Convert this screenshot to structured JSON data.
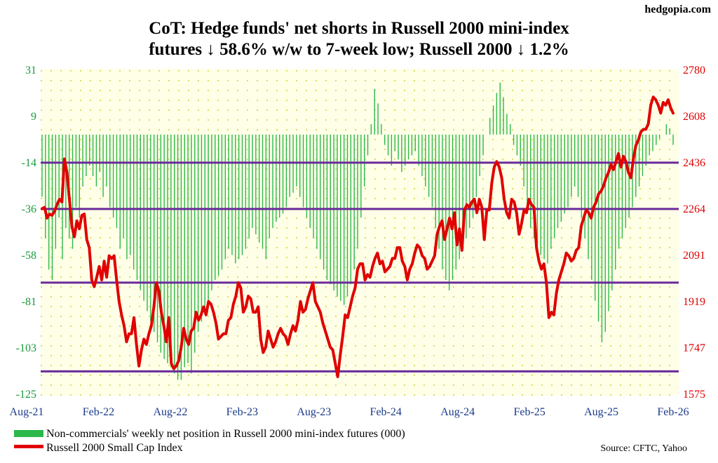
{
  "brand": "hedgopia.com",
  "title_lines": [
    "CoT: Hedge funds' net shorts in Russell 2000 mini-index",
    "futures ↓ 58.6% w/w to 7-week low; Russell 2000 ↓ 1.2%"
  ],
  "source": "Source: CFTC, Yahoo",
  "colors": {
    "plot_bg": "#ffffe8",
    "dot": "#d8d860",
    "bars": "#2cb84a",
    "line": "#e00000",
    "hline": "#6a2a9a",
    "left_axis": "#1a9a3c",
    "right_axis": "#e00000",
    "x_axis": "#1a3a8a"
  },
  "chart_data": {
    "type": "bar+line",
    "x_labels": [
      "Aug-21",
      "Feb-22",
      "Aug-22",
      "Feb-23",
      "Aug-23",
      "Feb-24",
      "Aug-24",
      "Feb-25",
      "Aug-25",
      "Feb-26"
    ],
    "x_range": [
      "2021-08",
      "2026-02"
    ],
    "left_axis": {
      "ticks": [
        "31",
        "9",
        "-14",
        "-36",
        "-58",
        "-81",
        "-103",
        "-125"
      ],
      "min": -125,
      "max": 31
    },
    "right_axis": {
      "ticks": [
        "2780",
        "2608",
        "2436",
        "2264",
        "2091",
        "1919",
        "1747",
        "1575"
      ],
      "min": 1575,
      "max": 2780
    },
    "horizontal_lines_index": [
      2436,
      2264,
      1990,
      1660
    ],
    "grid": "dotted",
    "legend_position": "bottom-left",
    "series": [
      {
        "name": "Non-commercials' weekly net position in Russell 2000 mini-index futures (000)",
        "type": "bar",
        "axis": "left",
        "values": [
          -30,
          -50,
          -65,
          -70,
          -55,
          -40,
          -60,
          -45,
          -50,
          -55,
          -35,
          -40,
          -25,
          -20,
          -15,
          -20,
          -25,
          -18,
          -30,
          -25,
          -35,
          -40,
          -45,
          -55,
          -50,
          -60,
          -58,
          -65,
          -70,
          -75,
          -80,
          -85,
          -90,
          -95,
          -100,
          -105,
          -108,
          -110,
          -112,
          -115,
          -118,
          -118,
          -112,
          -110,
          -115,
          -105,
          -95,
          -90,
          -85,
          -80,
          -75,
          -70,
          -68,
          -65,
          -60,
          -55,
          -58,
          -62,
          -60,
          -58,
          -55,
          -50,
          -45,
          -48,
          -52,
          -55,
          -60,
          -50,
          -45,
          -42,
          -40,
          -38,
          -35,
          -30,
          -28,
          -25,
          -30,
          -35,
          -40,
          -45,
          -50,
          -55,
          -60,
          -65,
          -70,
          -72,
          -75,
          -78,
          -80,
          -82,
          -78,
          -72,
          -65,
          -55,
          -40,
          -25,
          -10,
          5,
          22,
          15,
          5,
          -5,
          -10,
          -15,
          -8,
          -12,
          -18,
          -15,
          -12,
          -10,
          -8,
          -15,
          -20,
          -25,
          -30,
          -35,
          -45,
          -55,
          -65,
          -70,
          -75,
          -70,
          -65,
          -60,
          -55,
          -50,
          -45,
          -40,
          -30,
          -20,
          -10,
          0,
          8,
          14,
          20,
          25,
          18,
          10,
          5,
          -5,
          -10,
          -15,
          -25,
          -35,
          -45,
          -50,
          -55,
          -58,
          -60,
          -62,
          -55,
          -50,
          -45,
          -42,
          -38,
          -35,
          -30,
          -25,
          -30,
          -40,
          -50,
          -60,
          -70,
          -80,
          -90,
          -100,
          -95,
          -85,
          -75,
          -65,
          -55,
          -50,
          -45,
          -40,
          -35,
          -30,
          -25,
          -20,
          -15,
          -10,
          -8,
          -5,
          -2,
          0,
          5,
          3,
          -5
        ]
      },
      {
        "name": "Russell 2000 Small Cap Index",
        "type": "line",
        "axis": "right",
        "values": [
          2265,
          2270,
          2230,
          2245,
          2240,
          2255,
          2280,
          2300,
          2290,
          2450,
          2400,
          2300,
          2200,
          2160,
          2220,
          2190,
          2240,
          2245,
          2150,
          2120,
          2000,
          1975,
          2010,
          2050,
          2000,
          2070,
          2010,
          2090,
          2080,
          2090,
          2000,
          1920,
          1870,
          1830,
          1770,
          1800,
          1800,
          1860,
          1760,
          1680,
          1740,
          1780,
          1760,
          1800,
          1830,
          1900,
          1990,
          1960,
          1880,
          1830,
          1770,
          1860,
          1690,
          1670,
          1680,
          1700,
          1750,
          1820,
          1780,
          1760,
          1810,
          1820,
          1880,
          1850,
          1870,
          1900,
          1870,
          1920,
          1910,
          1880,
          1840,
          1780,
          1790,
          1800,
          1800,
          1850,
          1860,
          1910,
          1940,
          1990,
          1970,
          1880,
          1900,
          1940,
          1930,
          1880,
          1880,
          1900,
          1780,
          1730,
          1750,
          1810,
          1780,
          1750,
          1770,
          1800,
          1820,
          1800,
          1790,
          1760,
          1800,
          1830,
          1810,
          1850,
          1920,
          1880,
          1890,
          1930,
          1960,
          1990,
          1920,
          1900,
          1880,
          1840,
          1810,
          1780,
          1750,
          1740,
          1690,
          1640,
          1720,
          1790,
          1870,
          1860,
          1900,
          1940,
          1970,
          2040,
          2060,
          2060,
          2000,
          2020,
          2010,
          2050,
          2080,
          2100,
          2060,
          2070,
          2030,
          2040,
          2050,
          2080,
          2080,
          2120,
          2120,
          2070,
          2050,
          2000,
          2040,
          2060,
          2100,
          2130,
          2120,
          2090,
          2080,
          2040,
          2050,
          2070,
          2090,
          2170,
          2200,
          2220,
          2150,
          2190,
          2230,
          2190,
          2250,
          2130,
          2190,
          2110,
          2260,
          2280,
          2270,
          2290,
          2300,
          2250,
          2300,
          2270,
          2150,
          2260,
          2260,
          2360,
          2420,
          2440,
          2420,
          2380,
          2300,
          2250,
          2230,
          2300,
          2290,
          2250,
          2170,
          2210,
          2260,
          2250,
          2300,
          2280,
          2270,
          2120,
          2070,
          2040,
          2060,
          1990,
          1860,
          1880,
          1870,
          1950,
          2000,
          2030,
          2060,
          2100,
          2090,
          2070,
          2080,
          2110,
          2120,
          2200,
          2230,
          2260,
          2250,
          2230,
          2270,
          2290,
          2320,
          2330,
          2350,
          2380,
          2400,
          2430,
          2410,
          2440,
          2470,
          2420,
          2460,
          2440,
          2400,
          2380,
          2450,
          2500,
          2520,
          2550,
          2560,
          2560,
          2580,
          2650,
          2680,
          2670,
          2650,
          2620,
          2660,
          2650,
          2670,
          2640,
          2620
        ]
      }
    ]
  },
  "legend": [
    {
      "label": "Non-commercials' weekly net position in Russell 2000 mini-index futures (000)"
    },
    {
      "label": "Russell 2000 Small Cap Index"
    }
  ]
}
